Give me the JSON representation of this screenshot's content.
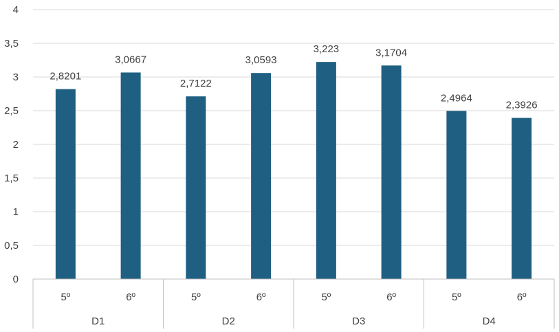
{
  "chart_data": {
    "type": "bar",
    "title": "",
    "xlabel": "",
    "ylabel": "",
    "ylim": [
      0,
      4
    ],
    "yticks": [
      "0",
      "0,5",
      "1",
      "1,5",
      "2",
      "2,5",
      "3",
      "3,5",
      "4"
    ],
    "ytick_values": [
      0,
      0.5,
      1,
      1.5,
      2,
      2.5,
      3,
      3.5,
      4
    ],
    "grid": true,
    "legend": "none",
    "bar_color": "#1f5f82",
    "groups": [
      {
        "name": "D1",
        "categories": [
          "5º",
          "6º"
        ],
        "values": [
          2.8201,
          3.0667
        ],
        "labels": [
          "2,8201",
          "3,0667"
        ]
      },
      {
        "name": "D2",
        "categories": [
          "5º",
          "6º"
        ],
        "values": [
          2.7122,
          3.0593
        ],
        "labels": [
          "2,7122",
          "3,0593"
        ]
      },
      {
        "name": "D3",
        "categories": [
          "5º",
          "6º"
        ],
        "values": [
          3.223,
          3.1704
        ],
        "labels": [
          "3,223",
          "3,1704"
        ]
      },
      {
        "name": "D4",
        "categories": [
          "5º",
          "6º"
        ],
        "values": [
          2.4964,
          2.3926
        ],
        "labels": [
          "2,4964",
          "2,3926"
        ]
      }
    ]
  }
}
